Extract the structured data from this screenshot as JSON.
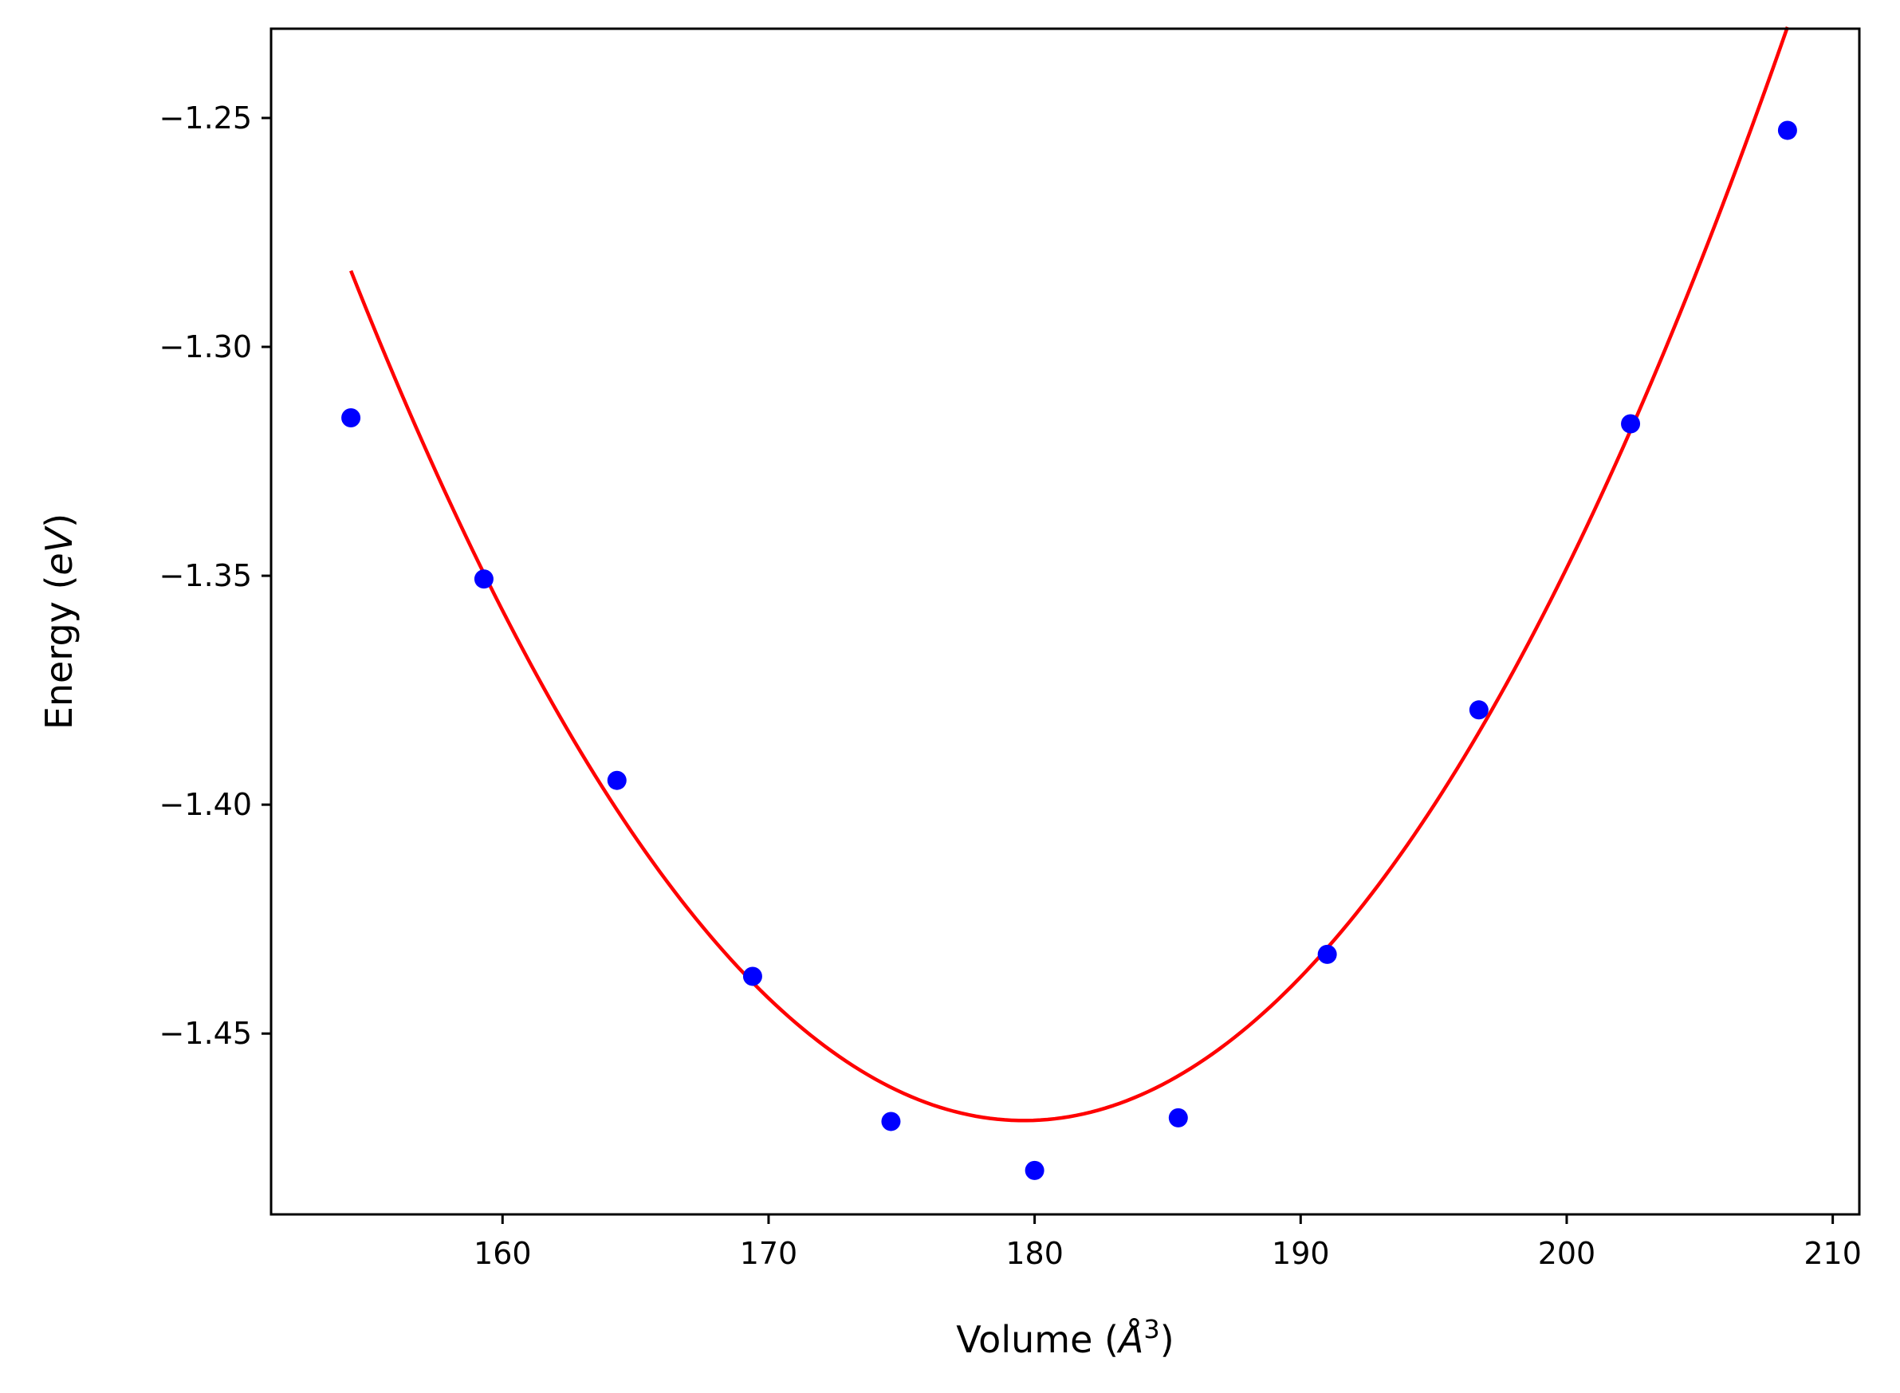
{
  "chart_data": {
    "type": "scatter",
    "title": "",
    "xlabel": "Volume (Å³)",
    "xlabel_parts": {
      "prefix": "Volume (",
      "unit": "Å",
      "exponent": "3",
      "suffix": ")"
    },
    "ylabel": "Energy (eV)",
    "ylabel_parts": {
      "prefix": "Energy (",
      "unit": "eV",
      "suffix": ")"
    },
    "xlim": [
      151.3,
      211.0
    ],
    "ylim": [
      -1.4895,
      -1.2305
    ],
    "xticks": [
      160,
      170,
      180,
      190,
      200,
      210
    ],
    "xtick_labels": [
      "160",
      "170",
      "180",
      "190",
      "200",
      "210"
    ],
    "yticks": [
      -1.25,
      -1.3,
      -1.35,
      -1.4,
      -1.45
    ],
    "ytick_labels": [
      "−1.25",
      "−1.30",
      "−1.35",
      "−1.40",
      "−1.45"
    ],
    "grid": false,
    "legend": "none",
    "series": [
      {
        "kind": "scatter",
        "color": "#0000ff",
        "x": [
          154.3,
          159.3,
          164.3,
          169.4,
          174.6,
          180.0,
          185.4,
          191.0,
          196.7,
          202.4,
          208.3
        ],
        "y": [
          -1.3155,
          -1.3507,
          -1.3947,
          -1.4375,
          -1.4692,
          -1.4799,
          -1.4684,
          -1.4327,
          -1.3793,
          -1.3168,
          -1.2527
        ]
      },
      {
        "kind": "line",
        "color": "#ff0000",
        "fit": "quadratic",
        "vertex_x": 179.6,
        "vertex_y": -1.469,
        "curvature": 0.00029,
        "x_range": [
          154.3,
          208.3
        ]
      }
    ]
  }
}
